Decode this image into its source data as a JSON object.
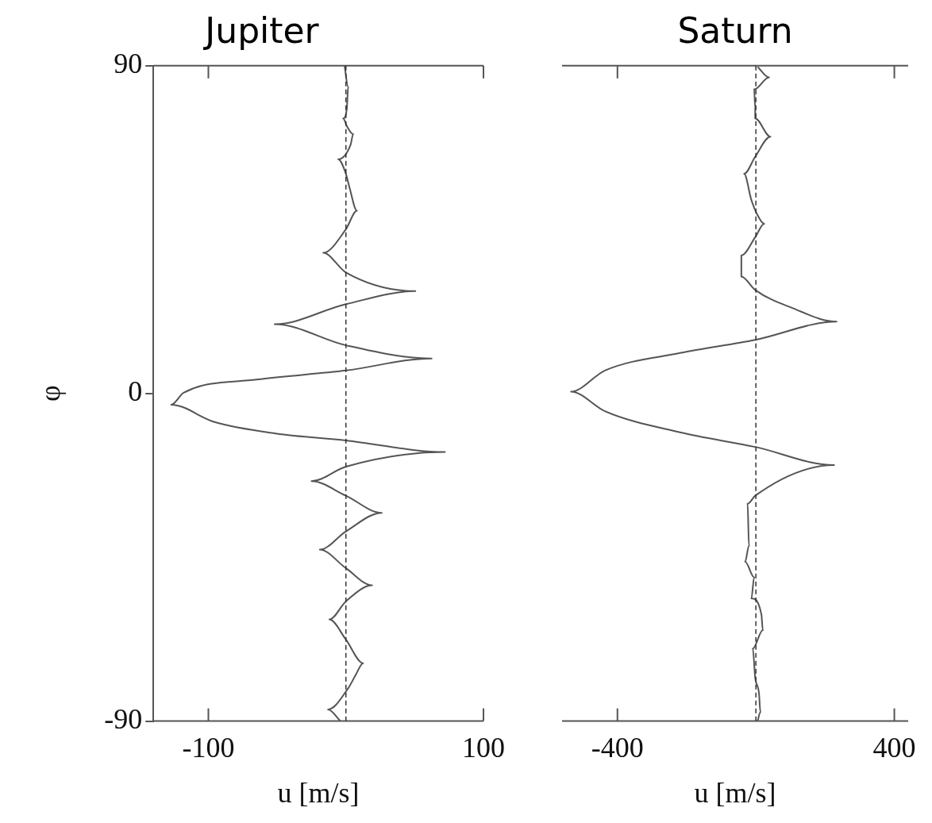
{
  "chart_data": [
    {
      "type": "line",
      "title": "Jupiter",
      "xlabel": "u [m/s]",
      "ylabel": "φ",
      "xlim": [
        -140,
        100
      ],
      "xticks": [
        -100,
        100
      ],
      "ylim": [
        -90,
        90
      ],
      "yticks": [
        -90,
        0,
        90
      ],
      "marker": "none",
      "line_style": "solid",
      "series": [
        {
          "color": "#555555",
          "x": [
            -1,
            1.6,
            0.7,
            -2,
            0.7,
            5.3,
            3.4,
            -5.6,
            0,
            2.5,
            8,
            0,
            -16.5,
            0,
            50.5,
            0,
            -51.8,
            0,
            62.3,
            0,
            -65,
            -118,
            -127,
            -96,
            -51,
            0,
            72,
            0,
            -25,
            0,
            26,
            0,
            -19,
            0,
            19,
            0,
            -12,
            0,
            12.5,
            7,
            1.6,
            -13,
            -4
          ],
          "values": [
            90,
            84.2,
            78.4,
            75.5,
            73.4,
            71.2,
            68.3,
            64.3,
            60.3,
            56.7,
            50.2,
            45.1,
            38.6,
            33.2,
            28.1,
            24.5,
            19,
            13.2,
            9.6,
            6.3,
            3.8,
            0.2,
            -3.1,
            -7.8,
            -11,
            -12.9,
            -16.1,
            -20.1,
            -24.1,
            -28.1,
            -32.8,
            -37.9,
            -42.9,
            -48,
            -52.7,
            -57.1,
            -62.1,
            -67.6,
            -74.1,
            -77.4,
            -81,
            -86.8,
            -90
          ]
        }
      ],
      "ref_lines": [
        {
          "axis": "x",
          "value": 0,
          "line_style": "dashed",
          "color": "#333333"
        }
      ]
    },
    {
      "type": "line",
      "title": "Saturn",
      "xlabel": "u [m/s]",
      "xlim": [
        -560,
        440
      ],
      "xticks": [
        -400,
        400
      ],
      "ylim": [
        -90,
        90
      ],
      "yticks": [
        -90,
        0,
        90
      ],
      "tick_labels": "x",
      "marker": "none",
      "line_style": "solid",
      "series": [
        {
          "color": "#555555",
          "x": [
            5,
            38,
            -5,
            -2,
            -2,
            42,
            -2,
            -34,
            -13,
            2,
            24,
            -2,
            -42,
            -42,
            -2,
            107,
            233,
            -2,
            -219,
            -436,
            -534,
            -436,
            -219,
            -2,
            226,
            -2,
            -24,
            -20,
            -31,
            -5,
            -13,
            16,
            20,
            -9,
            -2,
            9,
            13,
            5
          ],
          "values": [
            89.7,
            86.8,
            83.5,
            78.4,
            75.5,
            70.5,
            65,
            60.3,
            53.1,
            49.5,
            46.6,
            42.9,
            37.9,
            32.1,
            28.4,
            23.4,
            19.7,
            14.7,
            11.1,
            6.3,
            0.5,
            -4.9,
            -10.7,
            -14.7,
            -19.7,
            -28.1,
            -30.3,
            -41.8,
            -46.2,
            -50.5,
            -56.3,
            -60.7,
            -65,
            -70.1,
            -78.1,
            -82.4,
            -87.5,
            -90
          ]
        }
      ],
      "ref_lines": [
        {
          "axis": "x",
          "value": 0,
          "line_style": "dashed",
          "color": "#333333"
        }
      ]
    }
  ]
}
